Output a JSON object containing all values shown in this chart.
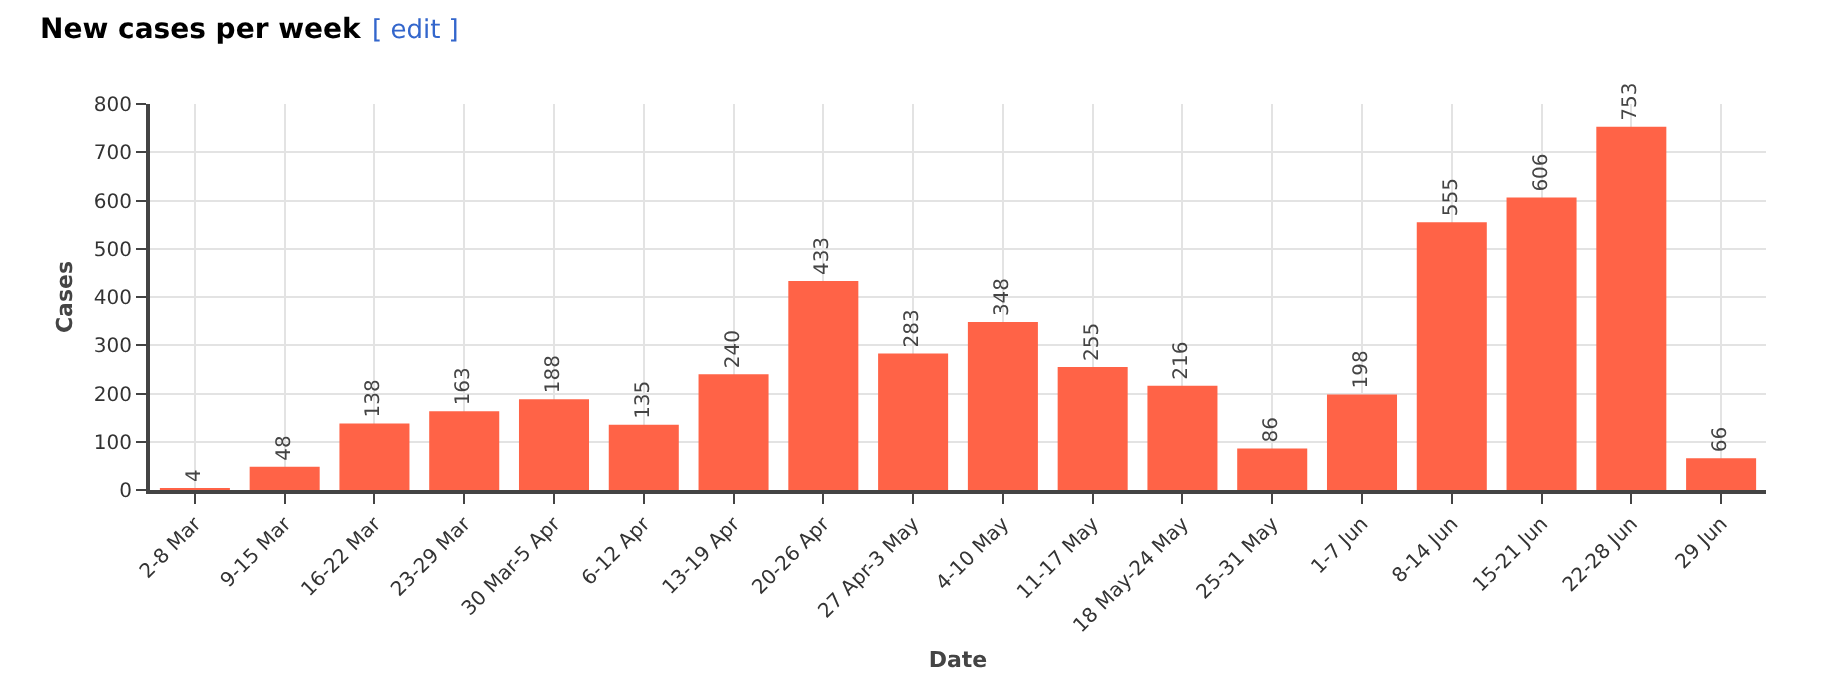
{
  "chart_data": {
    "type": "bar",
    "title": "New cases per week",
    "subtitle": "[ edit ]",
    "xlabel": "Date",
    "ylabel": "Cases",
    "categories": [
      "2-8 Mar",
      "9-15 Mar",
      "16-22 Mar",
      "23-29 Mar",
      "30 Mar-5 Apr",
      "6-12 Apr",
      "13-19 Apr",
      "20-26 Apr",
      "27 Apr-3 May",
      "4-10 May",
      "11-17 May",
      "18 May-24 May",
      "25-31 May",
      "1-7 Jun",
      "8-14 Jun",
      "15-21 Jun",
      "22-28 Jun",
      "29 Jun"
    ],
    "values": [
      4,
      48,
      138,
      163,
      188,
      135,
      240,
      433,
      283,
      348,
      255,
      216,
      86,
      198,
      555,
      606,
      753,
      66
    ],
    "color": "#ff6347",
    "ylim": [
      0,
      800
    ],
    "yticks": [
      0,
      100,
      200,
      300,
      400,
      500,
      600,
      700,
      800
    ],
    "grid": true,
    "data_labels": true
  }
}
